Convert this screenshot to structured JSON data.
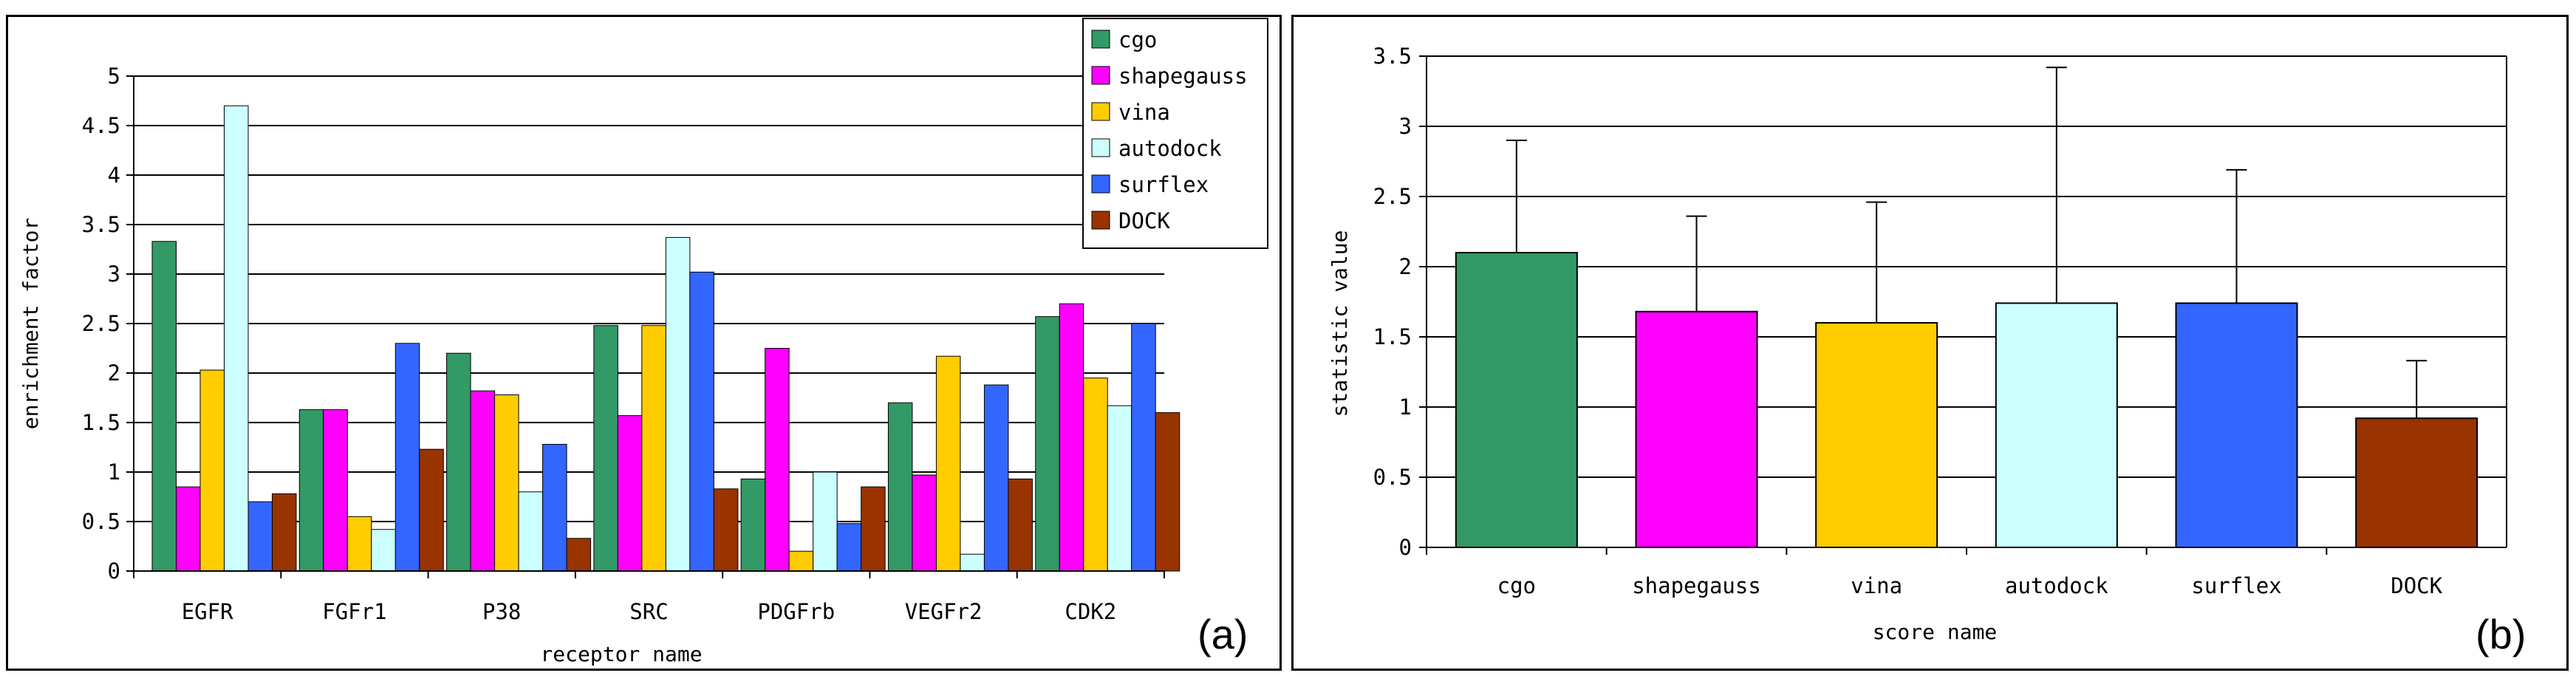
{
  "chart_data": [
    {
      "type": "bar",
      "panel_label": "(a)",
      "title": "",
      "xlabel": "receptor name",
      "ylabel": "enrichment factor",
      "ylim": [
        0,
        5
      ],
      "yticks": [
        "0",
        "0.5",
        "1",
        "1.5",
        "2",
        "2.5",
        "3",
        "3.5",
        "4",
        "4.5",
        "5"
      ],
      "grid": true,
      "legend_position": "top-right",
      "categories": [
        "EGFR",
        "FGFr1",
        "P38",
        "SRC",
        "PDGFrb",
        "VEGFr2",
        "CDK2"
      ],
      "series": [
        {
          "name": "cgo",
          "color": "#339966",
          "values": [
            3.33,
            1.63,
            2.2,
            2.48,
            0.93,
            1.7,
            2.57
          ]
        },
        {
          "name": "shapegauss",
          "color": "#ff00ff",
          "values": [
            0.85,
            1.63,
            1.82,
            1.57,
            2.25,
            0.97,
            2.7
          ]
        },
        {
          "name": "vina",
          "color": "#ffcc00",
          "values": [
            2.03,
            0.55,
            1.78,
            2.48,
            0.2,
            2.17,
            1.95
          ]
        },
        {
          "name": "autodock",
          "color": "#ccffff",
          "values": [
            4.7,
            0.42,
            0.8,
            3.37,
            1.0,
            0.17,
            1.67
          ]
        },
        {
          "name": "surflex",
          "color": "#3366ff",
          "values": [
            0.7,
            2.3,
            1.28,
            3.02,
            0.48,
            1.88,
            2.5
          ]
        },
        {
          "name": "DOCK",
          "color": "#993300",
          "values": [
            0.78,
            1.23,
            0.33,
            0.83,
            0.85,
            0.93,
            1.6
          ]
        }
      ]
    },
    {
      "type": "bar",
      "panel_label": "(b)",
      "title": "",
      "xlabel": "score name",
      "ylabel": "statistic value",
      "ylim": [
        0,
        3.5
      ],
      "yticks": [
        "0",
        "0.5",
        "1",
        "1.5",
        "2",
        "2.5",
        "3",
        "3.5"
      ],
      "grid": true,
      "categories": [
        "cgo",
        "shapegauss",
        "vina",
        "autodock",
        "surflex",
        "DOCK"
      ],
      "colors": [
        "#339966",
        "#ff00ff",
        "#ffcc00",
        "#ccffff",
        "#3366ff",
        "#993300"
      ],
      "values": [
        2.1,
        1.68,
        1.6,
        1.74,
        1.74,
        0.92
      ],
      "error_upper": [
        2.9,
        2.36,
        2.46,
        3.42,
        2.69,
        1.33
      ]
    }
  ]
}
